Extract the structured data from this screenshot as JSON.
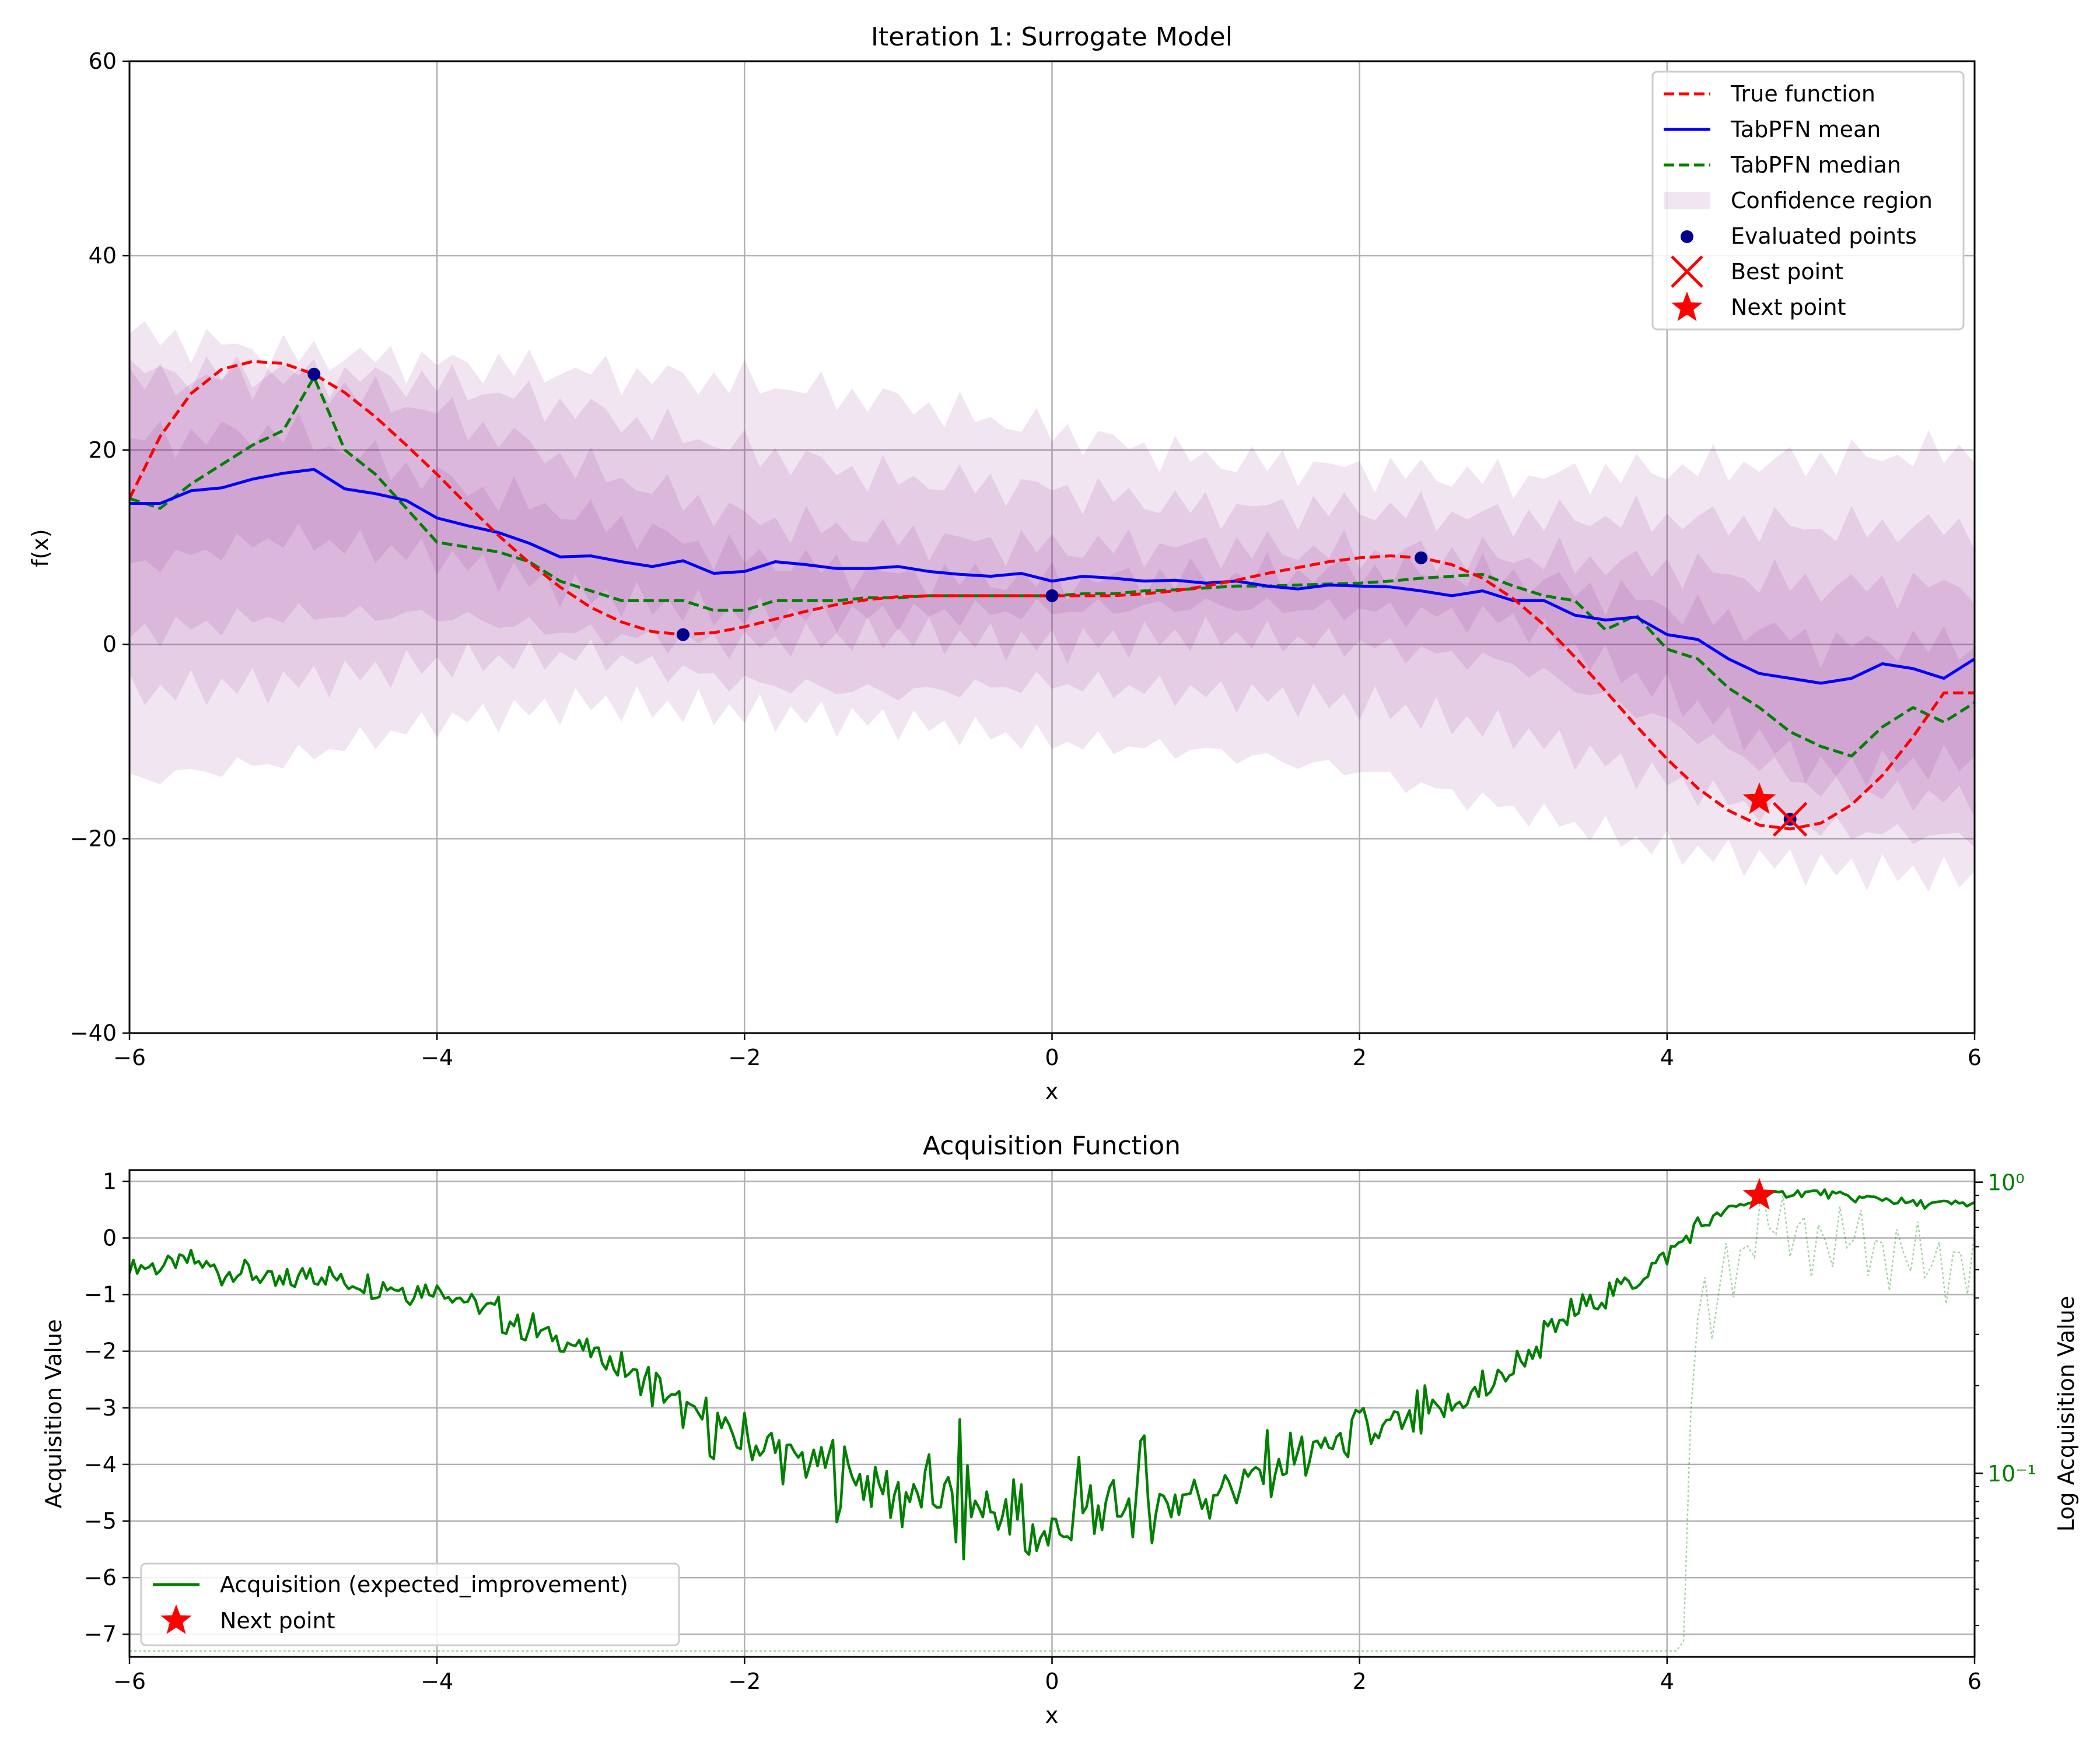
{
  "chart_data": [
    {
      "type": "line",
      "title": "Iteration 1: Surrogate Model",
      "xlabel": "x",
      "ylabel": "f(x)",
      "xlim": [
        -6,
        6
      ],
      "ylim": [
        -40,
        60
      ],
      "xticks": [
        -6,
        -4,
        -2,
        0,
        2,
        4,
        6
      ],
      "yticks": [
        -40,
        -20,
        0,
        20,
        40,
        60
      ],
      "grid": true,
      "legend_position": "top-right",
      "legend": [
        "True function",
        "TabPFN mean",
        "TabPFN median",
        "Confidence region",
        "Evaluated points",
        "Best point",
        "Next point"
      ],
      "colors": {
        "true_function": "#ff0000",
        "mean": "#0000ff",
        "median": "#008000",
        "confidence": "#800080",
        "evaluated": "#00008b",
        "best": "#ff0000",
        "next": "#ff0000"
      },
      "series": [
        {
          "name": "True function",
          "style": "dashed",
          "x": [
            -6.0,
            -5.8,
            -5.6,
            -5.4,
            -5.2,
            -5.0,
            -4.8,
            -4.6,
            -4.4,
            -4.2,
            -4.0,
            -3.8,
            -3.6,
            -3.4,
            -3.2,
            -3.0,
            -2.8,
            -2.6,
            -2.4,
            -2.2,
            -2.0,
            -1.8,
            -1.6,
            -1.4,
            -1.2,
            -1.0,
            -0.8,
            -0.6,
            -0.4,
            -0.2,
            0.0,
            0.2,
            0.4,
            0.6,
            0.8,
            1.0,
            1.2,
            1.4,
            1.6,
            1.8,
            2.0,
            2.2,
            2.4,
            2.6,
            2.8,
            3.0,
            3.2,
            3.4,
            3.6,
            3.8,
            4.0,
            4.2,
            4.4,
            4.6,
            4.8,
            5.0,
            5.2,
            5.4,
            5.6,
            5.8,
            6.0
          ],
          "y": [
            15.0,
            21.4,
            25.8,
            28.3,
            29.1,
            28.9,
            27.8,
            25.9,
            23.4,
            20.5,
            17.5,
            14.3,
            11.2,
            8.4,
            5.9,
            3.8,
            2.3,
            1.3,
            1.0,
            1.2,
            1.8,
            2.6,
            3.4,
            4.1,
            4.6,
            4.9,
            5.0,
            5.0,
            5.0,
            5.0,
            5.0,
            5.0,
            5.0,
            5.2,
            5.5,
            6.0,
            6.6,
            7.3,
            7.9,
            8.5,
            8.9,
            9.1,
            8.9,
            8.2,
            6.8,
            4.7,
            2.0,
            -1.3,
            -4.8,
            -8.4,
            -11.8,
            -14.8,
            -17.1,
            -18.6,
            -19.0,
            -18.4,
            -16.5,
            -13.5,
            -9.5,
            -5.0,
            -5.0
          ]
        },
        {
          "name": "TabPFN mean",
          "style": "solid",
          "x": [
            -6.0,
            -5.8,
            -5.6,
            -5.4,
            -5.2,
            -5.0,
            -4.8,
            -4.6,
            -4.4,
            -4.2,
            -4.0,
            -3.8,
            -3.6,
            -3.4,
            -3.2,
            -3.0,
            -2.8,
            -2.6,
            -2.4,
            -2.2,
            -2.0,
            -1.8,
            -1.6,
            -1.4,
            -1.2,
            -1.0,
            -0.8,
            -0.6,
            -0.4,
            -0.2,
            0.0,
            0.2,
            0.4,
            0.6,
            0.8,
            1.0,
            1.2,
            1.4,
            1.6,
            1.8,
            2.0,
            2.2,
            2.4,
            2.6,
            2.8,
            3.0,
            3.2,
            3.4,
            3.6,
            3.8,
            4.0,
            4.2,
            4.4,
            4.6,
            4.8,
            5.0,
            5.2,
            5.4,
            5.6,
            5.8,
            6.0
          ],
          "y": [
            14.5,
            14.5,
            15.8,
            16.1,
            17.0,
            17.6,
            18.0,
            16.0,
            15.5,
            14.8,
            13.0,
            12.2,
            11.5,
            10.4,
            9.0,
            9.1,
            8.5,
            8.0,
            8.6,
            7.3,
            7.5,
            8.5,
            8.2,
            7.8,
            7.8,
            8.0,
            7.5,
            7.2,
            7.0,
            7.3,
            6.5,
            7.0,
            6.8,
            6.5,
            6.6,
            6.3,
            6.5,
            6.0,
            5.7,
            6.1,
            6.0,
            5.9,
            5.5,
            5.0,
            5.5,
            4.5,
            4.5,
            3.0,
            2.5,
            2.8,
            1.0,
            0.5,
            -1.5,
            -3.0,
            -3.5,
            -4.0,
            -3.5,
            -2.0,
            -2.5,
            -3.5,
            -1.5
          ]
        },
        {
          "name": "TabPFN median",
          "style": "dashed",
          "x": [
            -6.0,
            -5.8,
            -5.6,
            -5.4,
            -5.2,
            -5.0,
            -4.8,
            -4.6,
            -4.4,
            -4.2,
            -4.0,
            -3.8,
            -3.6,
            -3.4,
            -3.2,
            -3.0,
            -2.8,
            -2.6,
            -2.4,
            -2.2,
            -2.0,
            -1.8,
            -1.6,
            -1.4,
            -1.2,
            -1.0,
            -0.8,
            -0.6,
            -0.4,
            -0.2,
            0.0,
            0.2,
            0.4,
            0.6,
            0.8,
            1.0,
            1.2,
            1.4,
            1.6,
            1.8,
            2.0,
            2.2,
            2.4,
            2.6,
            2.8,
            3.0,
            3.2,
            3.4,
            3.6,
            3.8,
            4.0,
            4.2,
            4.4,
            4.6,
            4.8,
            5.0,
            5.2,
            5.4,
            5.6,
            5.8,
            6.0
          ],
          "y": [
            15.0,
            14.0,
            16.5,
            18.5,
            20.5,
            22.0,
            27.5,
            20.0,
            17.5,
            14.0,
            10.5,
            10.0,
            9.5,
            8.5,
            6.5,
            5.5,
            4.5,
            4.5,
            4.5,
            3.5,
            3.5,
            4.5,
            4.5,
            4.5,
            4.8,
            4.8,
            5.0,
            5.0,
            5.0,
            5.0,
            5.0,
            5.2,
            5.2,
            5.5,
            5.6,
            5.8,
            6.0,
            6.0,
            6.1,
            6.2,
            6.3,
            6.5,
            6.8,
            7.0,
            7.2,
            6.0,
            5.0,
            4.5,
            1.5,
            3.0,
            -0.5,
            -1.5,
            -4.5,
            -6.5,
            -9.0,
            -10.5,
            -11.5,
            -8.5,
            -6.5,
            -8.0,
            -6.0
          ]
        },
        {
          "name": "Evaluated points",
          "style": "markers",
          "x": [
            -4.8,
            -2.4,
            0.0,
            2.4,
            4.8
          ],
          "y": [
            27.8,
            1.0,
            5.0,
            8.9,
            -18.0
          ]
        }
      ],
      "confidence_bands": [
        {
          "x": [
            -6.0,
            -5.0,
            -4.0,
            -3.0,
            -2.0,
            -1.0,
            0.0,
            1.0,
            2.0,
            3.0,
            4.0,
            5.0,
            6.0
          ],
          "upper": [
            32.0,
            30.0,
            29.0,
            28.0,
            27.0,
            25.0,
            22.0,
            19.0,
            18.0,
            17.0,
            18.0,
            19.0,
            20.0
          ],
          "lower": [
            -14.0,
            -12.0,
            -8.0,
            -6.0,
            -7.0,
            -8.0,
            -10.0,
            -11.0,
            -13.0,
            -17.0,
            -21.0,
            -23.0,
            -24.0
          ]
        },
        {
          "x": [
            -6.0,
            -5.0,
            -4.0,
            -3.0,
            -2.0,
            -1.0,
            0.0,
            1.0,
            2.0,
            3.0,
            4.0,
            5.0,
            6.0
          ],
          "upper": [
            28.0,
            28.0,
            27.0,
            24.0,
            20.0,
            17.0,
            16.0,
            14.0,
            14.0,
            13.0,
            13.0,
            12.0,
            12.0
          ],
          "lower": [
            -5.0,
            -4.0,
            -2.0,
            -1.0,
            -4.0,
            -5.0,
            -4.0,
            -5.0,
            -6.0,
            -9.0,
            -14.0,
            -19.0,
            -20.0
          ]
        },
        {
          "x": [
            -6.0,
            -5.0,
            -4.0,
            -3.0,
            -2.0,
            -1.0,
            0.0,
            1.0,
            2.0,
            3.0,
            4.0,
            5.0,
            6.0
          ],
          "upper": [
            27.0,
            27.5,
            24.0,
            18.0,
            13.0,
            11.0,
            10.0,
            10.0,
            9.5,
            9.0,
            8.0,
            6.0,
            6.0
          ],
          "lower": [
            1.0,
            3.0,
            3.0,
            1.0,
            0.0,
            1.0,
            0.0,
            1.0,
            0.0,
            -2.0,
            -8.0,
            -15.0,
            -16.0
          ]
        },
        {
          "x": [
            -6.0,
            -5.0,
            -4.0,
            -3.0,
            -2.0,
            -1.0,
            0.0,
            1.0,
            2.0,
            3.0,
            4.0,
            5.0,
            6.0
          ],
          "upper": [
            21.0,
            22.0,
            17.0,
            13.0,
            9.0,
            7.0,
            6.5,
            7.0,
            7.5,
            7.0,
            4.0,
            0.0,
            0.0
          ],
          "lower": [
            8.0,
            11.0,
            9.0,
            5.0,
            3.0,
            3.0,
            3.5,
            4.0,
            3.5,
            2.5,
            -5.0,
            -13.0,
            -12.0
          ]
        }
      ],
      "markers": {
        "best_point": {
          "name": "Best point",
          "x": 4.8,
          "y": -18.0
        },
        "next_point": {
          "name": "Next point",
          "x": 4.6,
          "y": -16.0
        }
      }
    },
    {
      "type": "line",
      "title": "Acquisition Function",
      "xlabel": "x",
      "ylabel": "Acquisition Value",
      "y2label": "Log Acquisition Value",
      "xlim": [
        -6,
        6
      ],
      "ylim": [
        -7.4,
        1.2
      ],
      "y2scale": "log",
      "y2lim": [
        0.0234,
        1.1
      ],
      "xticks": [
        -6,
        -4,
        -2,
        0,
        2,
        4,
        6
      ],
      "yticks": [
        1,
        0,
        -1,
        -2,
        -3,
        -4,
        -5,
        -6,
        -7
      ],
      "y2ticks": [
        1,
        0.1
      ],
      "y2ticklabels": [
        "10⁰",
        "10⁻¹"
      ],
      "grid": true,
      "legend_position": "bottom-left",
      "legend": [
        "Acquisition (expected_improvement)",
        "Next point"
      ],
      "series": [
        {
          "name": "Acquisition (expected_improvement)",
          "style": "solid",
          "x": [
            -6.0,
            -5.8,
            -5.6,
            -5.4,
            -5.2,
            -5.0,
            -4.8,
            -4.6,
            -4.4,
            -4.2,
            -4.0,
            -3.8,
            -3.6,
            -3.4,
            -3.2,
            -3.0,
            -2.8,
            -2.6,
            -2.4,
            -2.2,
            -2.0,
            -1.8,
            -1.6,
            -1.4,
            -1.2,
            -1.0,
            -0.8,
            -0.6,
            -0.4,
            -0.2,
            0.0,
            0.2,
            0.4,
            0.6,
            0.8,
            1.0,
            1.2,
            1.4,
            1.6,
            1.8,
            2.0,
            2.2,
            2.4,
            2.6,
            2.8,
            3.0,
            3.2,
            3.4,
            3.6,
            3.8,
            4.0,
            4.2,
            4.4,
            4.6,
            4.8,
            5.0,
            5.2,
            5.4,
            5.6,
            5.8,
            6.0
          ],
          "y": [
            -0.5,
            -0.5,
            -0.4,
            -0.6,
            -0.6,
            -0.9,
            -0.5,
            -0.8,
            -0.8,
            -0.9,
            -0.9,
            -1.1,
            -1.4,
            -1.6,
            -1.8,
            -2.0,
            -2.3,
            -2.6,
            -3.0,
            -3.3,
            -3.6,
            -3.8,
            -3.9,
            -4.1,
            -4.3,
            -4.5,
            -4.6,
            -4.7,
            -4.8,
            -5.2,
            -5.3,
            -5.0,
            -4.8,
            -4.6,
            -4.6,
            -4.4,
            -4.3,
            -4.1,
            -3.9,
            -3.6,
            -3.6,
            -3.4,
            -3.2,
            -3.0,
            -2.7,
            -2.3,
            -1.8,
            -1.3,
            -1.0,
            -0.7,
            -0.3,
            0.2,
            0.5,
            0.7,
            0.8,
            0.8,
            0.7,
            0.7,
            0.6,
            0.6,
            0.6
          ],
          "noise": [
            0.0,
            0.1,
            -0.1,
            0.2,
            -0.2,
            0.3,
            -0.3,
            0.1,
            -0.2,
            0.2,
            0.0,
            -0.1,
            0.3,
            -0.3,
            0.1,
            -0.1,
            0.2,
            -0.4,
            0.3,
            -0.6,
            0.5,
            -0.7,
            0.4,
            -0.8,
            0.6,
            -1.0,
            0.7,
            -1.4,
            0.8,
            -1.7,
            0.9,
            -1.5,
            0.6,
            -1.2,
            0.8,
            -0.8,
            0.6,
            -0.6,
            0.9,
            -0.5,
            0.7,
            -0.5,
            0.6,
            -0.4,
            0.5,
            -0.3,
            0.3,
            -0.3,
            0.2,
            -0.2,
            0.1,
            -0.1,
            0.1,
            0.0,
            0.0,
            0.0,
            0.0,
            0.0,
            0.0,
            0.0,
            0.0
          ]
        },
        {
          "name": "Log acquisition",
          "axis": "right",
          "style": "dotted",
          "x": [
            -6.0,
            -1.0,
            4.0,
            4.1,
            4.12,
            4.15,
            4.2,
            4.3,
            4.4,
            4.5,
            4.6,
            4.8,
            5.0,
            5.2,
            5.4,
            5.6,
            5.8,
            6.0
          ],
          "y": [
            0.0245,
            0.0245,
            0.0245,
            0.0245,
            0.03,
            0.15,
            0.4,
            0.35,
            0.55,
            0.5,
            0.8,
            0.7,
            0.6,
            0.7,
            0.55,
            0.6,
            0.5,
            0.55
          ]
        }
      ],
      "markers": {
        "next_point": {
          "name": "Next point",
          "x": 4.6,
          "y": 0.75
        }
      }
    }
  ]
}
